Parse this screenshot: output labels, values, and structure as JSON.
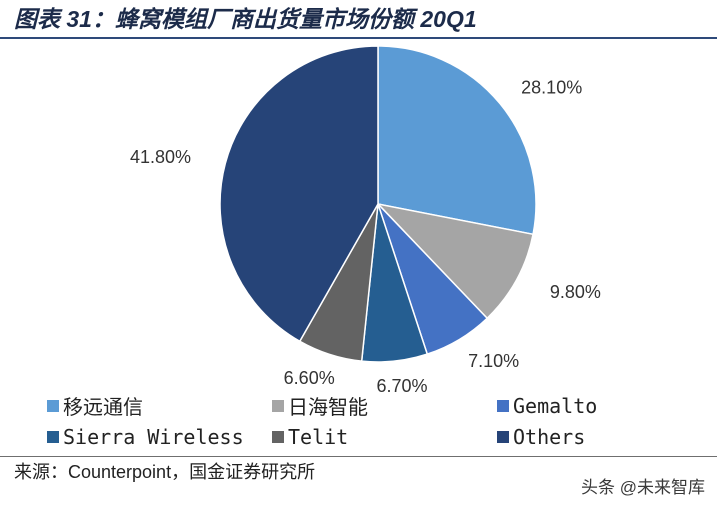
{
  "chart_data": {
    "type": "pie",
    "title": "图表 31：蜂窝模组厂商出货量市场份额 20Q1",
    "categories": [
      "移远通信",
      "日海智能",
      "Gemalto",
      "Sierra Wireless",
      "Telit",
      "Others"
    ],
    "values": [
      28.1,
      9.8,
      7.1,
      6.7,
      6.6,
      41.8
    ],
    "value_labels": [
      "28.10%",
      "9.80%",
      "7.10%",
      "6.70%",
      "6.60%",
      "41.80%"
    ],
    "colors": [
      "#5b9bd5",
      "#a5a5a5",
      "#4472c4",
      "#255e91",
      "#636363",
      "#264478"
    ],
    "start": "top",
    "direction": "clockwise",
    "legend": "bottom"
  },
  "source": "来源：Counterpoint，国金证券研究所",
  "watermark": "头条 @未来智库"
}
